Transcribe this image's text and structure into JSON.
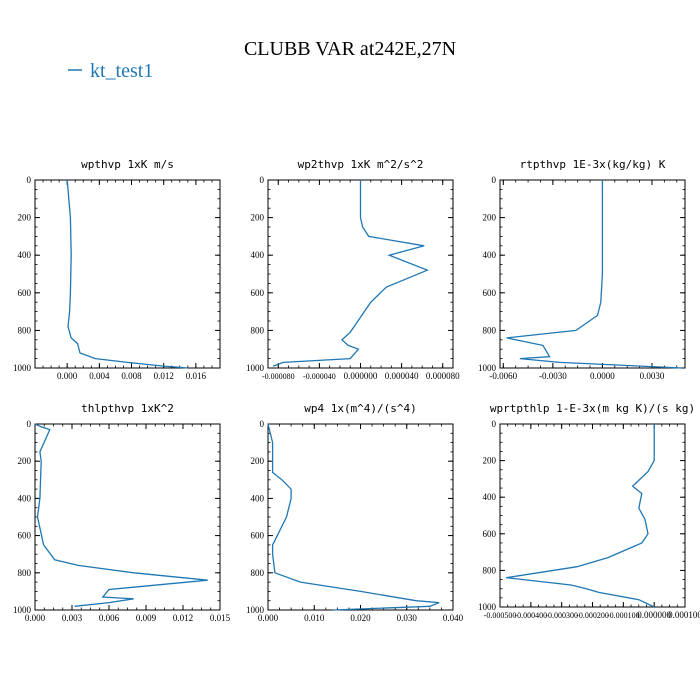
{
  "figure": {
    "title": "CLUBB VAR at242E,27N",
    "legend": "kt_test1",
    "colors": {
      "series": "#1f77b4",
      "axis": "#000000"
    }
  },
  "chart_data": [
    {
      "type": "line",
      "title": "wpthvp   1xK m/s",
      "series": [
        {
          "name": "kt_test1",
          "x": [
            0.0,
            0.0002,
            0.0004,
            0.0005,
            0.0004,
            0.0003,
            0.0001,
            0.0005,
            0.0013,
            0.0016,
            0.0035,
            0.0075,
            0.012,
            0.015
          ],
          "y": [
            0,
            100,
            200,
            400,
            600,
            700,
            780,
            840,
            870,
            920,
            950,
            970,
            990,
            1000
          ]
        }
      ],
      "xlim": [
        -0.004,
        0.019
      ],
      "ylim": [
        1000,
        0
      ],
      "xticks": [
        0.0,
        0.004,
        0.008,
        0.012,
        0.016
      ],
      "xticklabels": [
        "0.000",
        "0.004",
        "0.008",
        "0.012",
        "0.016"
      ],
      "yticks": [
        0,
        200,
        400,
        600,
        800,
        1000
      ],
      "yticklabels": [
        "0",
        "200",
        "400",
        "600",
        "800",
        "1000"
      ]
    },
    {
      "type": "line",
      "title": "wp2thvp   1xK m^2/s^2",
      "series": [
        {
          "name": "kt_test1",
          "x": [
            0.0,
            0.0,
            2e-06,
            8e-06,
            6.2e-05,
            2.8e-05,
            6.5e-05,
            2.5e-05,
            1e-05,
            0.0,
            -1e-05,
            -1.8e-05,
            -1.2e-05,
            -2e-06,
            -1e-05,
            -7.5e-05,
            -8.5e-05
          ],
          "y": [
            0,
            200,
            250,
            300,
            350,
            400,
            480,
            570,
            650,
            730,
            810,
            850,
            880,
            900,
            950,
            970,
            990
          ]
        }
      ],
      "xlim": [
        -9e-05,
        9e-05
      ],
      "ylim": [
        1000,
        0
      ],
      "xticks": [
        -8e-05,
        -4e-05,
        0.0,
        4e-05,
        8e-05
      ],
      "xticklabels": [
        "-0.000080",
        "-0.000040",
        "0.000000",
        "0.000040",
        "0.000080"
      ],
      "yticks": [
        0,
        200,
        400,
        600,
        800,
        1000
      ],
      "yticklabels": [
        "0",
        "200",
        "400",
        "600",
        "800",
        "1000"
      ]
    },
    {
      "type": "line",
      "title": "rtpthvp   1E-3x(kg/kg) K",
      "series": [
        {
          "name": "kt_test1",
          "x": [
            0.0,
            0.0,
            0.0,
            -0.0001,
            -0.0003,
            -0.0016,
            -0.0058,
            -0.0036,
            -0.0032,
            -0.005,
            -0.0026,
            0.0048
          ],
          "y": [
            0,
            200,
            500,
            650,
            720,
            800,
            840,
            880,
            940,
            950,
            970,
            1000
          ]
        }
      ],
      "xlim": [
        -0.0062,
        0.005
      ],
      "ylim": [
        1000,
        0
      ],
      "xticks": [
        -0.006,
        -0.003,
        0.0,
        0.003
      ],
      "xticklabels": [
        "-0.0060",
        "-0.0030",
        "0.0000",
        "0.0030"
      ],
      "yticks": [
        0,
        200,
        400,
        600,
        800,
        1000
      ],
      "yticklabels": [
        "0",
        "200",
        "400",
        "600",
        "800",
        "1000"
      ]
    },
    {
      "type": "line",
      "title": "thlpthvp   1xK^2",
      "series": [
        {
          "name": "kt_test1",
          "x": [
            0.0,
            0.0005,
            0.0012,
            0.0004,
            0.0005,
            0.0004,
            0.0002,
            0.0006,
            0.0007,
            0.0016,
            0.0035,
            0.008,
            0.014,
            0.006,
            0.0055,
            0.008,
            0.006,
            0.0032
          ],
          "y": [
            0,
            15,
            30,
            150,
            200,
            400,
            500,
            620,
            650,
            730,
            760,
            800,
            840,
            890,
            930,
            940,
            960,
            980
          ]
        }
      ],
      "xlim": [
        0.0,
        0.015
      ],
      "ylim": [
        1000,
        0
      ],
      "xticks": [
        0.0,
        0.003,
        0.006,
        0.009,
        0.012,
        0.015
      ],
      "xticklabels": [
        "0.000",
        "0.003",
        "0.006",
        "0.009",
        "0.012",
        "0.015"
      ],
      "yticks": [
        0,
        200,
        400,
        600,
        800,
        1000
      ],
      "yticklabels": [
        "0",
        "200",
        "400",
        "600",
        "800",
        "1000"
      ]
    },
    {
      "type": "line",
      "title": "wp4   1x(m^4)/(s^4)",
      "series": [
        {
          "name": "kt_test1",
          "x": [
            0.0,
            0.001,
            0.001,
            0.003,
            0.005,
            0.005,
            0.004,
            0.002,
            0.001,
            0.001,
            0.0015,
            0.007,
            0.02,
            0.032,
            0.037,
            0.035,
            0.014
          ],
          "y": [
            0,
            100,
            260,
            300,
            350,
            400,
            500,
            600,
            650,
            700,
            800,
            850,
            900,
            950,
            960,
            980,
            1000
          ]
        }
      ],
      "xlim": [
        0.0,
        0.04
      ],
      "ylim": [
        1000,
        0
      ],
      "xticks": [
        0.0,
        0.01,
        0.02,
        0.03,
        0.04
      ],
      "xticklabels": [
        "0.000",
        "0.010",
        "0.020",
        "0.030",
        "0.040"
      ],
      "yticks": [
        0,
        200,
        400,
        600,
        800,
        1000
      ],
      "yticklabels": [
        "0",
        "200",
        "400",
        "600",
        "800",
        "1000"
      ]
    },
    {
      "type": "line",
      "title": "wprtpthlp   1-E-3x(m kg K)/(s kg)",
      "series": [
        {
          "name": "kt_test1",
          "x": [
            0.0,
            0.0,
            -2e-05,
            -7e-05,
            -4e-05,
            -5e-05,
            -3e-05,
            -2e-05,
            -4e-05,
            -0.00015,
            -0.00025,
            -0.00048,
            -0.00027,
            -0.00022,
            -0.00018,
            -5e-05,
            0.0
          ],
          "y": [
            0,
            200,
            260,
            340,
            380,
            460,
            520,
            600,
            650,
            730,
            780,
            840,
            880,
            900,
            920,
            960,
            1000
          ]
        }
      ],
      "xlim": [
        -0.0005,
        0.0001
      ],
      "ylim": [
        1000,
        0
      ],
      "xticks": [
        -0.0005,
        -0.0004,
        -0.0003,
        -0.0002,
        -0.0001,
        0.0,
        0.0001
      ],
      "xticklabels": [
        "-0.000500",
        "-0.000400",
        "-0.000300",
        "-0.000200",
        "-0.000100",
        "0.000000",
        "0.000100"
      ],
      "yticks": [
        0,
        200,
        400,
        600,
        800,
        1000
      ],
      "yticklabels": [
        "0",
        "200",
        "400",
        "600",
        "800",
        "1000"
      ]
    }
  ]
}
